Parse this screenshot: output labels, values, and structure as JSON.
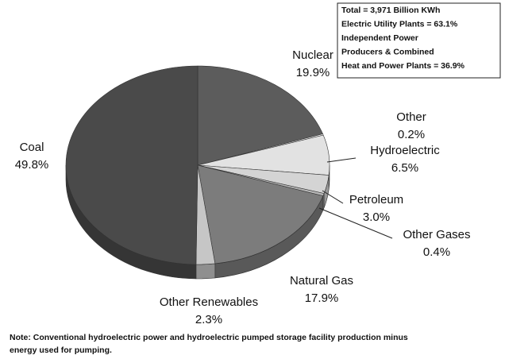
{
  "chart_data": {
    "type": "pie",
    "categories": [
      "Nuclear",
      "Other",
      "Hydroelectric",
      "Petroleum",
      "Other Gases",
      "Natural Gas",
      "Other Renewables",
      "Coal"
    ],
    "values": [
      19.9,
      0.2,
      6.5,
      3.0,
      0.4,
      17.9,
      2.3,
      49.8
    ],
    "value_labels": [
      "19.9%",
      "0.2%",
      "6.5%",
      "3.0%",
      "0.4%",
      "17.9%",
      "2.3%",
      "49.8%"
    ],
    "colors": [
      "#5c5c5c",
      "#f4f4f4",
      "#e2e2e2",
      "#d4d4d4",
      "#b8b8b8",
      "#7c7c7c",
      "#c6c6c6",
      "#4a4a4a"
    ],
    "annotation": [
      "Total = 3,971 Billion KWh",
      "Electric Utility Plants = 63.1%",
      "Independent Power",
      "Producers & Combined",
      "Heat and Power Plants = 36.9%"
    ],
    "note": [
      "Note: Conventional hydroelectric power and hydroelectric pumped storage facility production minus",
      "energy used for pumping."
    ]
  }
}
